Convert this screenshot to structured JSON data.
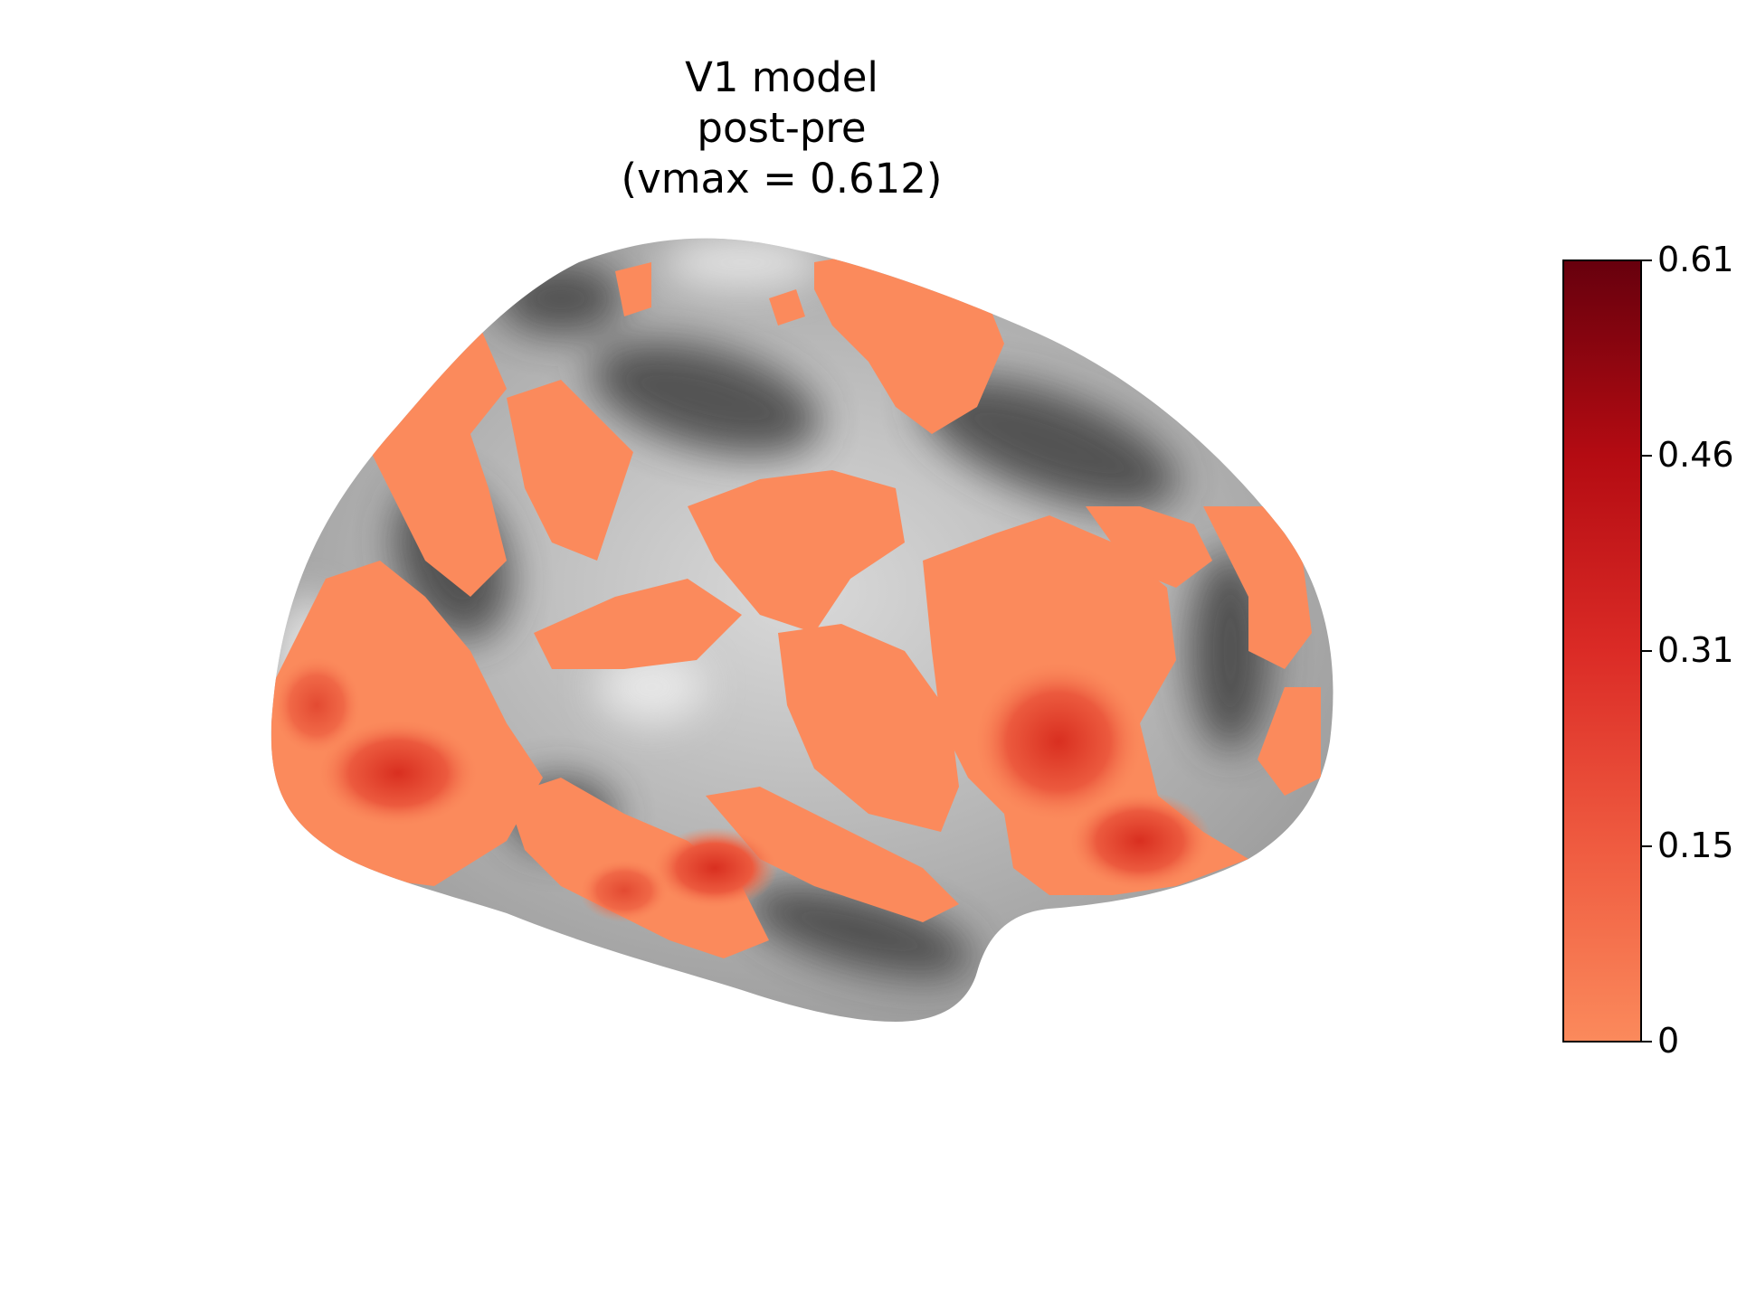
{
  "figure": {
    "title_lines": [
      "V1 model",
      "post-pre",
      "(vmax = 0.612)"
    ]
  },
  "colorbar": {
    "vmin": 0,
    "vmax": 0.612,
    "colormap": "Reds",
    "tick_labels": [
      "0",
      "0.15",
      "0.31",
      "0.46",
      "0.61"
    ],
    "tick_values": [
      0,
      0.153,
      0.306,
      0.459,
      0.612
    ],
    "colors": {
      "bottom": "#fb8a5c",
      "lower": "#ef5b40",
      "middle": "#db2b26",
      "upper": "#b40b12",
      "top": "#67000d"
    }
  },
  "surface": {
    "view": "lateral",
    "background_shading": "grayscale curvature",
    "overlay_base_color": "#fb8a5c",
    "overlay_peak_color": "#de3a22"
  }
}
